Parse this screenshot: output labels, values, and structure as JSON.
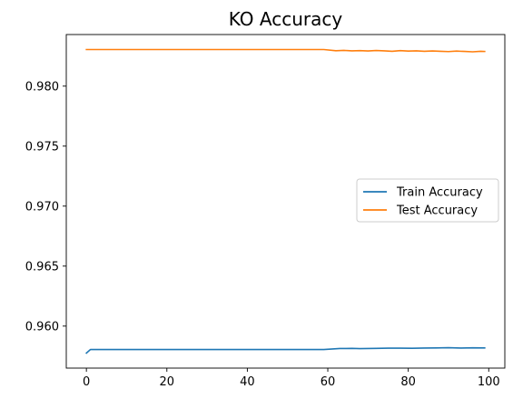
{
  "chart_data": {
    "type": "line",
    "title": "KO Accuracy",
    "xlabel": "",
    "ylabel": "",
    "xlim": [
      -5,
      104
    ],
    "ylim": [
      0.9565,
      0.9843
    ],
    "xticks": [
      0,
      20,
      40,
      60,
      80,
      100
    ],
    "yticks": [
      0.96,
      0.965,
      0.97,
      0.975,
      0.98
    ],
    "ytick_labels": [
      "0.960",
      "0.965",
      "0.970",
      "0.975",
      "0.980"
    ],
    "grid": false,
    "legend_placement": "center-right",
    "series": [
      {
        "name": "Train Accuracy",
        "color": "#1f77b4",
        "points": [
          [
            0,
            0.95775
          ],
          [
            1,
            0.95805
          ],
          [
            10,
            0.95805
          ],
          [
            20,
            0.95805
          ],
          [
            30,
            0.95805
          ],
          [
            40,
            0.95805
          ],
          [
            50,
            0.95805
          ],
          [
            59,
            0.95805
          ],
          [
            63,
            0.95813
          ],
          [
            66,
            0.95814
          ],
          [
            68,
            0.95812
          ],
          [
            72,
            0.95814
          ],
          [
            75,
            0.95816
          ],
          [
            78,
            0.95816
          ],
          [
            81,
            0.95815
          ],
          [
            84,
            0.95817
          ],
          [
            87,
            0.95818
          ],
          [
            90,
            0.9582
          ],
          [
            93,
            0.95817
          ],
          [
            96,
            0.95819
          ],
          [
            99,
            0.95818
          ]
        ]
      },
      {
        "name": "Test Accuracy",
        "color": "#ff7f0e",
        "points": [
          [
            0,
            0.98305
          ],
          [
            10,
            0.98305
          ],
          [
            20,
            0.98305
          ],
          [
            30,
            0.98305
          ],
          [
            40,
            0.98305
          ],
          [
            50,
            0.98305
          ],
          [
            59,
            0.98305
          ],
          [
            62,
            0.98295
          ],
          [
            64,
            0.98298
          ],
          [
            66,
            0.98294
          ],
          [
            68,
            0.98296
          ],
          [
            70,
            0.98293
          ],
          [
            72,
            0.98297
          ],
          [
            74,
            0.98294
          ],
          [
            76,
            0.9829
          ],
          [
            78,
            0.98296
          ],
          [
            80,
            0.98292
          ],
          [
            82,
            0.98294
          ],
          [
            84,
            0.9829
          ],
          [
            86,
            0.98293
          ],
          [
            88,
            0.9829
          ],
          [
            90,
            0.98288
          ],
          [
            92,
            0.98292
          ],
          [
            94,
            0.98289
          ],
          [
            96,
            0.98286
          ],
          [
            98,
            0.9829
          ],
          [
            99,
            0.98289
          ]
        ]
      }
    ]
  }
}
